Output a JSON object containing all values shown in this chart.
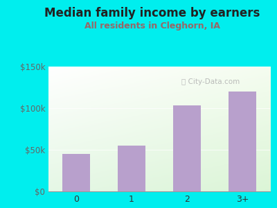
{
  "title": "Median family income by earners",
  "subtitle": "All residents in Cleghorn, IA",
  "categories": [
    "0",
    "1",
    "2",
    "3+"
  ],
  "values": [
    45000,
    55000,
    103000,
    120000
  ],
  "bar_color": "#b8a0cc",
  "title_color": "#222222",
  "subtitle_color": "#996666",
  "outer_bg": "#00eeee",
  "ylim": [
    0,
    150000
  ],
  "yticks": [
    0,
    50000,
    100000,
    150000
  ],
  "ytick_labels": [
    "$0",
    "$50k",
    "$100k",
    "$150k"
  ],
  "watermark": "City-Data.com",
  "title_fontsize": 12,
  "subtitle_fontsize": 9,
  "tick_color": "#666666"
}
